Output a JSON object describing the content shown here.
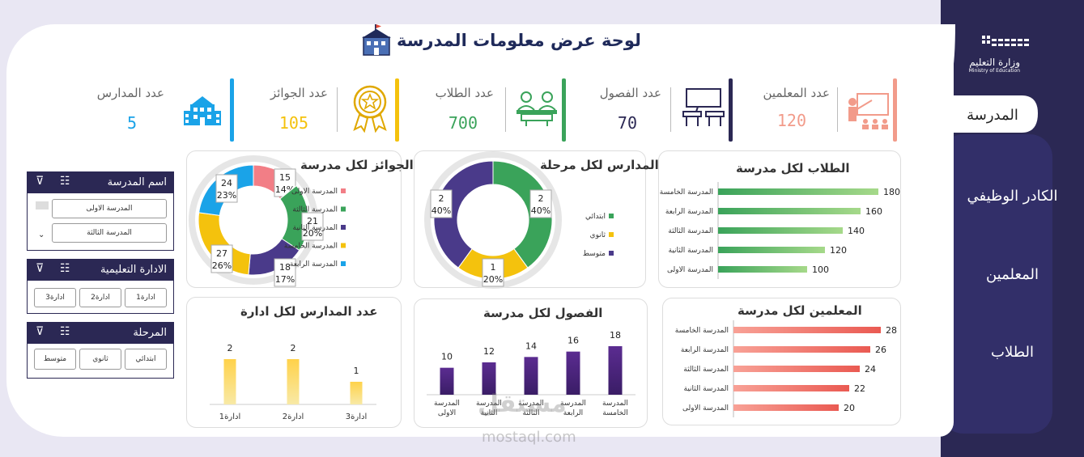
{
  "header": {
    "title": "لوحة عرض معلومات المدرسة"
  },
  "ministry": {
    "name_ar": "وزارة التعليم",
    "name_en": "Ministry of Education"
  },
  "sidebar": {
    "items": [
      {
        "label": "المدرسة",
        "active": true
      },
      {
        "label": "الكادر الوظيفي",
        "active": false
      },
      {
        "label": "المعلمين",
        "active": false
      },
      {
        "label": "الطلاب",
        "active": false
      }
    ]
  },
  "kpis": [
    {
      "label": "عدد المعلمين",
      "value": "120",
      "color": "#f29b8a",
      "icon": "teacher-icon"
    },
    {
      "label": "عدد الفصول",
      "value": "70",
      "color": "#2b2854",
      "icon": "classroom-icon"
    },
    {
      "label": "عدد الطلاب",
      "value": "700",
      "color": "#3aa35a",
      "icon": "students-icon"
    },
    {
      "label": "عدد الجوائز",
      "value": "105",
      "color": "#f4c20d",
      "icon": "award-icon"
    },
    {
      "label": "عدد المدارس",
      "value": "5",
      "color": "#1aa3e8",
      "icon": "school-icon"
    }
  ],
  "slicers": {
    "school": {
      "title": "اسم المدرسة",
      "items": [
        "المدرسة الاولى",
        "المدرسة الثالثة"
      ]
    },
    "admin": {
      "title": "الادارة التعليمية",
      "items": [
        "ادارة1",
        "ادارة2",
        "ادارة3"
      ]
    },
    "stage": {
      "title": "المرحلة",
      "items": [
        "ابتدائي",
        "ثانوي",
        "متوسط"
      ]
    }
  },
  "colors": {
    "green": "#3aa35a",
    "yellow": "#f4c20d",
    "purple": "#5b2c91",
    "red": "#ea5a52",
    "blue": "#1aa3e8",
    "pink": "#f27e86",
    "navy": "#2b2854"
  },
  "chart_data": [
    {
      "type": "bar",
      "title": "الطلاب لكل مدرسة",
      "categories": [
        "المدرسة الخامسة",
        "المدرسة الرابعة",
        "المدرسة الثالثة",
        "المدرسة الثانية",
        "المدرسة الاولى"
      ],
      "values": [
        180,
        160,
        140,
        120,
        100
      ],
      "xlim": [
        0,
        180
      ]
    },
    {
      "type": "pie",
      "title": "المدارس لكل مرحلة",
      "categories": [
        "ابتدائي",
        "ثانوي",
        "متوسط"
      ],
      "values": [
        2,
        1,
        2
      ],
      "percent_labels": [
        "40%",
        "20%",
        "40%"
      ]
    },
    {
      "type": "pie",
      "title": "الجوائز لكل مدرسة",
      "categories": [
        "المدرسة الاولى",
        "المدرسة الثالثة",
        "المدرسة الثانية",
        "المدرسة الخامسة",
        "المدرسة الرابعة"
      ],
      "values": [
        15,
        21,
        18,
        27,
        24
      ],
      "percent_labels": [
        "14%",
        "20%",
        "17%",
        "26%",
        "23%"
      ]
    },
    {
      "type": "bar",
      "title": "المعلمين لكل مدرسة",
      "categories": [
        "المدرسة الخامسة",
        "المدرسة الرابعة",
        "المدرسة الثالثة",
        "المدرسة الثانية",
        "المدرسة الاولى"
      ],
      "values": [
        28,
        26,
        24,
        22,
        20
      ],
      "xlim": [
        0,
        28
      ]
    },
    {
      "type": "bar",
      "title": "الفصول لكل مدرسة",
      "categories": [
        "المدرسة الاولى",
        "المدرسة الثانية",
        "المدرسة الثالثة",
        "المدرسة الرابعة",
        "المدرسة الخامسة"
      ],
      "values": [
        10,
        12,
        14,
        16,
        18
      ],
      "ylim": [
        0,
        18
      ]
    },
    {
      "type": "bar",
      "title": "عدد المدارس لكل ادارة",
      "categories": [
        "ادارة1",
        "ادارة2",
        "ادارة3"
      ],
      "values": [
        2,
        2,
        1
      ],
      "ylim": [
        0,
        2
      ]
    }
  ],
  "watermark": {
    "text_ar": "مستقل",
    "text_en": "mostaql.com"
  }
}
